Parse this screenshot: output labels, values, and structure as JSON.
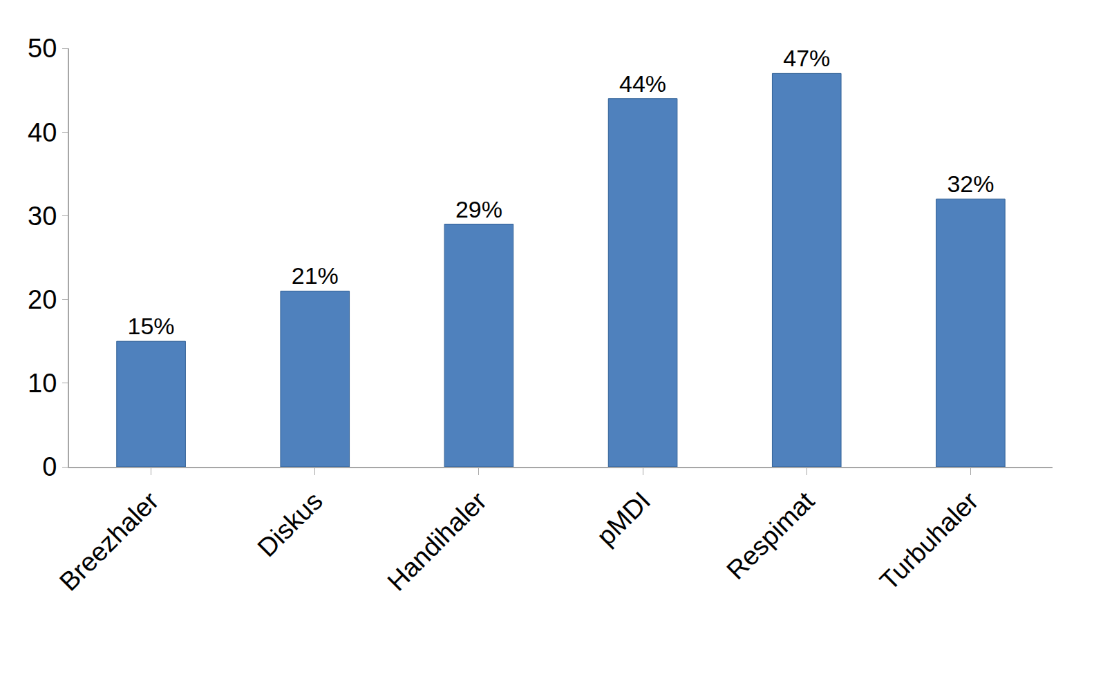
{
  "chart_data": {
    "type": "bar",
    "categories": [
      "Breezhaler",
      "Diskus",
      "Handihaler",
      "pMDI",
      "Respimat",
      "Turbuhaler"
    ],
    "values": [
      15,
      21,
      29,
      44,
      47,
      32
    ],
    "value_labels": [
      "15%",
      "21%",
      "29%",
      "44%",
      "47%",
      "32%"
    ],
    "data_labels": true,
    "color": "#4f81bd",
    "ylim": [
      0,
      50
    ],
    "yticks": [
      0,
      10,
      20,
      30,
      40,
      50
    ],
    "grid": false
  }
}
